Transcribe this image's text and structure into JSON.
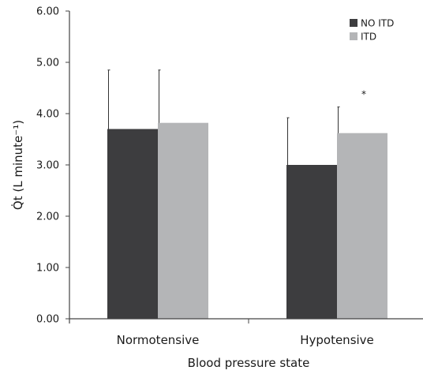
{
  "chart_data": {
    "type": "bar",
    "title": "",
    "xlabel": "Blood pressure state",
    "ylabel": "Q̇t (L minute⁻¹)",
    "categories": [
      "Normotensive",
      "Hypotensive"
    ],
    "series": [
      {
        "name": "NO ITD",
        "color": "#3d3d3f",
        "values": [
          3.7,
          3.0
        ],
        "error_upper": [
          4.85,
          3.92
        ]
      },
      {
        "name": "ITD",
        "color": "#b4b5b7",
        "values": [
          3.82,
          3.62
        ],
        "error_upper": [
          4.85,
          4.13
        ]
      }
    ],
    "ylim": [
      0,
      6
    ],
    "yticks": [
      "0.00",
      "1.00",
      "2.00",
      "3.00",
      "4.00",
      "5.00",
      "6.00"
    ],
    "grid": false,
    "legend_placement": "top-right",
    "annotations": [
      {
        "text": "*",
        "category": "Hypotensive",
        "series": "ITD"
      }
    ]
  }
}
